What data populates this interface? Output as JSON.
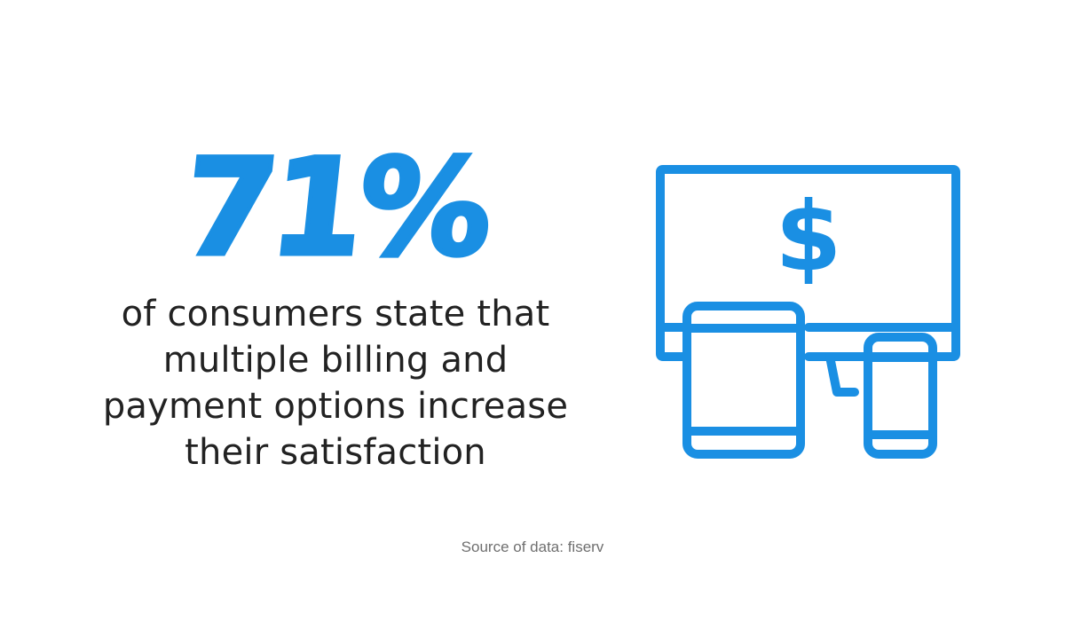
{
  "stat": {
    "value": "71%",
    "caption_lines": [
      "of consumers state that",
      "multiple billing and",
      "payment options increase",
      "their satisfaction"
    ]
  },
  "illustration": {
    "icon": "devices-payment-icon",
    "screen_symbol": "$",
    "color": "#1a8fe3"
  },
  "footer": {
    "source": "Source of data: fiserv"
  }
}
